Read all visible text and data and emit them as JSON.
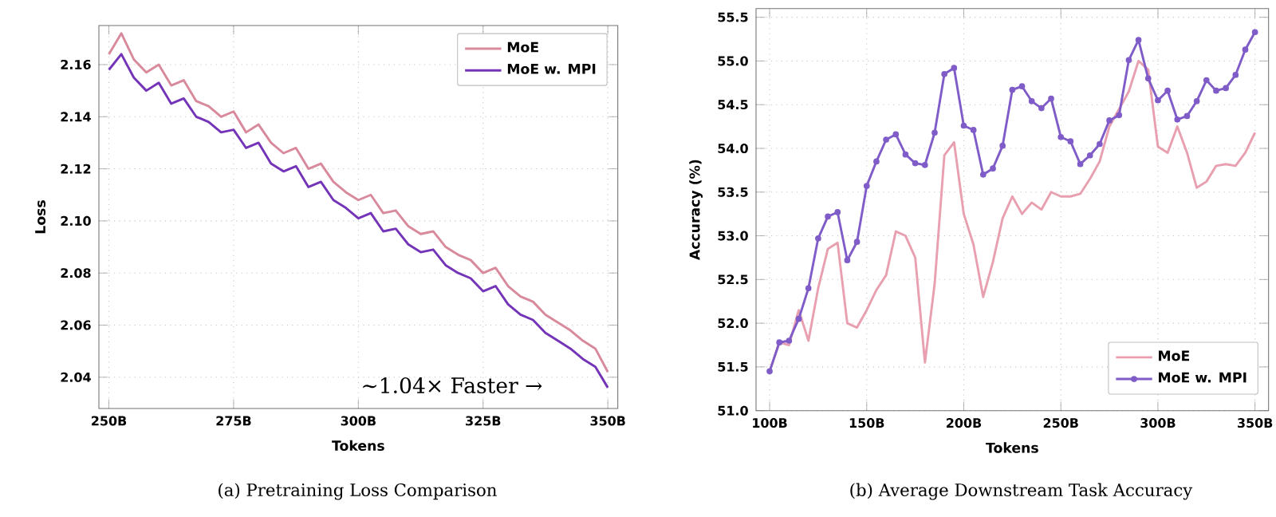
{
  "chart_data": [
    {
      "type": "line",
      "title": "(a) Pretraining Loss Comparison",
      "xlabel": "Tokens",
      "ylabel": "Loss",
      "x": [
        250,
        252.5,
        255,
        257.5,
        260,
        262.5,
        265,
        267.5,
        270,
        272.5,
        275,
        277.5,
        280,
        282.5,
        285,
        287.5,
        290,
        292.5,
        295,
        297.5,
        300,
        302.5,
        305,
        307.5,
        310,
        312.5,
        315,
        317.5,
        320,
        322.5,
        325,
        327.5,
        330,
        332.5,
        335,
        337.5,
        340,
        342.5,
        345,
        347.5,
        350
      ],
      "series": [
        {
          "name": "MoE",
          "color": "#d88a9c",
          "values": [
            2.164,
            2.172,
            2.162,
            2.157,
            2.16,
            2.152,
            2.154,
            2.146,
            2.144,
            2.14,
            2.142,
            2.134,
            2.137,
            2.13,
            2.126,
            2.128,
            2.12,
            2.122,
            2.115,
            2.111,
            2.108,
            2.11,
            2.103,
            2.104,
            2.098,
            2.095,
            2.096,
            2.09,
            2.087,
            2.085,
            2.08,
            2.082,
            2.075,
            2.071,
            2.069,
            2.064,
            2.061,
            2.058,
            2.054,
            2.051,
            2.042
          ]
        },
        {
          "name": "MoE w. MPI",
          "color": "#7434b8",
          "values": [
            2.158,
            2.164,
            2.155,
            2.15,
            2.153,
            2.145,
            2.147,
            2.14,
            2.138,
            2.134,
            2.135,
            2.128,
            2.13,
            2.122,
            2.119,
            2.121,
            2.113,
            2.115,
            2.108,
            2.105,
            2.101,
            2.103,
            2.096,
            2.097,
            2.091,
            2.088,
            2.089,
            2.083,
            2.08,
            2.078,
            2.073,
            2.075,
            2.068,
            2.064,
            2.062,
            2.057,
            2.054,
            2.051,
            2.047,
            2.044,
            2.036
          ]
        }
      ],
      "xlim": [
        248,
        352
      ],
      "ylim": [
        2.028,
        2.175
      ],
      "xticks": [
        {
          "value": 250,
          "label": "250B"
        },
        {
          "value": 275,
          "label": "275B"
        },
        {
          "value": 300,
          "label": "300B"
        },
        {
          "value": 325,
          "label": "325B"
        },
        {
          "value": 350,
          "label": "350B"
        }
      ],
      "yticks": [
        2.04,
        2.06,
        2.08,
        {
          "value": 2.1,
          "label": "2.10"
        },
        2.12,
        2.14,
        2.16
      ],
      "grid": true,
      "legend": "top right",
      "line_style": "solid",
      "annotations": [
        "~1.04× Faster →"
      ]
    },
    {
      "type": "line",
      "title": "(b) Average Downstream Task Accuracy",
      "xlabel": "Tokens",
      "ylabel": "Accuracy (%)",
      "x": [
        100,
        105,
        110,
        115,
        120,
        125,
        130,
        135,
        140,
        145,
        150,
        155,
        160,
        165,
        170,
        175,
        180,
        185,
        190,
        195,
        200,
        205,
        210,
        215,
        220,
        225,
        230,
        235,
        240,
        245,
        250,
        255,
        260,
        265,
        270,
        275,
        280,
        285,
        290,
        295,
        300,
        305,
        310,
        315,
        320,
        325,
        330,
        335,
        340,
        345,
        350
      ],
      "series": [
        {
          "name": "MoE",
          "color": "#e8a0b0",
          "marker": "none",
          "values": [
            51.45,
            51.78,
            51.75,
            52.15,
            51.8,
            52.4,
            52.85,
            52.92,
            52.0,
            51.95,
            52.15,
            52.38,
            52.55,
            53.05,
            53.0,
            52.75,
            51.55,
            52.45,
            53.92,
            54.07,
            53.25,
            52.9,
            52.3,
            52.7,
            53.2,
            53.45,
            53.25,
            53.38,
            53.3,
            53.5,
            53.45,
            53.45,
            53.48,
            53.65,
            53.85,
            54.25,
            54.45,
            54.65,
            55.0,
            54.9,
            54.02,
            53.95,
            54.25,
            53.95,
            53.55,
            53.62,
            53.8,
            53.82,
            53.8,
            53.95,
            54.18
          ]
        },
        {
          "name": "MoE w. MPI",
          "color": "#7f5cc8",
          "marker": "circle",
          "values": [
            51.45,
            51.78,
            51.8,
            52.05,
            52.4,
            52.97,
            53.22,
            53.27,
            52.72,
            52.93,
            53.57,
            53.85,
            54.1,
            54.16,
            53.93,
            53.83,
            53.81,
            54.18,
            54.85,
            54.92,
            54.26,
            54.21,
            53.7,
            53.77,
            54.03,
            54.67,
            54.71,
            54.54,
            54.46,
            54.57,
            54.13,
            54.08,
            53.82,
            53.92,
            54.05,
            54.32,
            54.38,
            55.01,
            55.24,
            54.8,
            54.55,
            54.66,
            54.33,
            54.37,
            54.54,
            54.78,
            54.66,
            54.69,
            54.84,
            55.13,
            55.33
          ]
        }
      ],
      "xlim": [
        93,
        357
      ],
      "ylim": [
        51.0,
        55.6
      ],
      "xticks": [
        {
          "value": 100,
          "label": "100B"
        },
        {
          "value": 150,
          "label": "150B"
        },
        {
          "value": 200,
          "label": "200B"
        },
        {
          "value": 250,
          "label": "250B"
        },
        {
          "value": 300,
          "label": "300B"
        },
        {
          "value": 350,
          "label": "350B"
        }
      ],
      "yticks": [
        {
          "value": 51,
          "label": "51.0"
        },
        51.5,
        {
          "value": 52,
          "label": "52.0"
        },
        52.5,
        {
          "value": 53,
          "label": "53.0"
        },
        53.5,
        {
          "value": 54,
          "label": "54.0"
        },
        54.5,
        {
          "value": 55,
          "label": "55.0"
        },
        55.5
      ],
      "grid": true,
      "legend": "bottom right",
      "line_style": "solid"
    }
  ]
}
